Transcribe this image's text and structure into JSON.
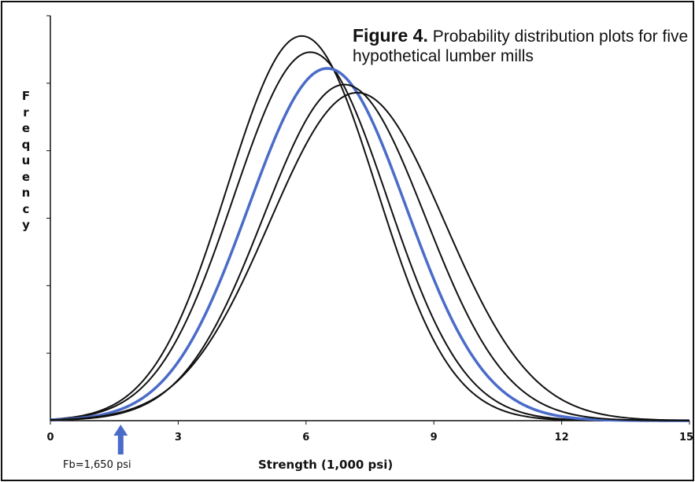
{
  "chart_data": {
    "type": "line",
    "title_number": "Figure 4.",
    "title": "Probability distribution plots for five hypothetical lumber mills",
    "xlabel": "Strength (1,000 psi)",
    "ylabel": "Frequency",
    "xlim": [
      0,
      15
    ],
    "xticks": [
      "0",
      "3",
      "6",
      "9",
      "12",
      "15"
    ],
    "grid": false,
    "legend": "none",
    "series": [
      {
        "mean": 5.9,
        "sd": 1.75,
        "peak": 0.95,
        "color": "#111111"
      },
      {
        "mean": 6.1,
        "sd": 1.8,
        "peak": 0.91,
        "color": "#111111"
      },
      {
        "mean": 6.5,
        "sd": 1.85,
        "peak": 0.87,
        "color": "#4a6bc9"
      },
      {
        "mean": 6.9,
        "sd": 1.9,
        "peak": 0.83,
        "color": "#111111"
      },
      {
        "mean": 7.2,
        "sd": 2.05,
        "peak": 0.81,
        "color": "#111111"
      }
    ],
    "annotation": {
      "text": "Fb=1,650 psi",
      "x": 1.65,
      "color": "#4a6bc9"
    }
  }
}
